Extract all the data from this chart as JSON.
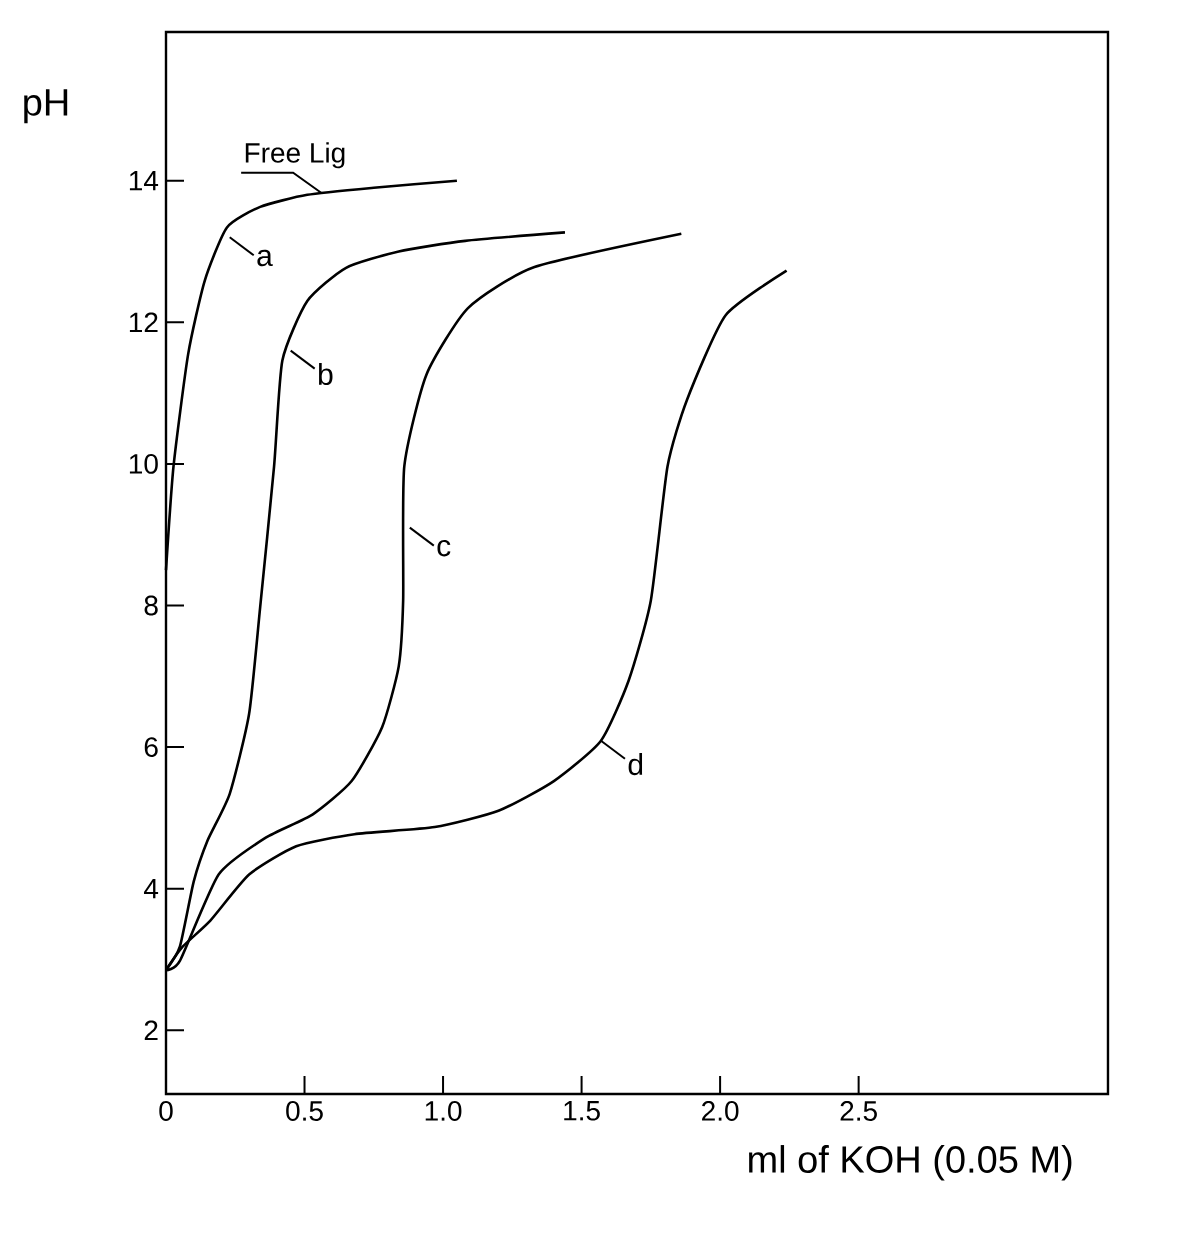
{
  "chart_data": {
    "type": "line",
    "xlabel": "ml of KOH (0.05 M)",
    "ylabel": "pH",
    "xlim": [
      0,
      3.4
    ],
    "ylim": [
      1.1,
      16.1
    ],
    "xticks": [
      0,
      {
        "value": 0.5,
        "label": "0.5"
      },
      {
        "value": 1.0,
        "label": "1.0"
      },
      {
        "value": 1.5,
        "label": "1.5"
      },
      {
        "value": 2.0,
        "label": "2.0"
      },
      {
        "value": 2.5,
        "label": "2.5"
      }
    ],
    "yticks": [
      2,
      4,
      6,
      8,
      10,
      12,
      14
    ],
    "series": [
      {
        "color": "#000000",
        "x": [
          0,
          0.027,
          0.08,
          0.14,
          0.22,
          0.34,
          0.51,
          0.75,
          1.05
        ],
        "values": [
          8.5,
          9.96,
          11.55,
          12.59,
          13.34,
          13.63,
          13.8,
          13.9,
          14.0
        ]
      },
      {
        "color": "#000000",
        "x": [
          0,
          0.05,
          0.1,
          0.15,
          0.23,
          0.3,
          0.34,
          0.39,
          0.42,
          0.51,
          0.65,
          0.84,
          1.08,
          1.44
        ],
        "values": [
          2.85,
          3.18,
          4.1,
          4.68,
          5.34,
          6.47,
          7.98,
          9.96,
          11.46,
          12.3,
          12.77,
          13.0,
          13.15,
          13.27
        ]
      },
      {
        "color": "#000000",
        "x": [
          0,
          0.05,
          0.19,
          0.36,
          0.53,
          0.67,
          0.78,
          0.84,
          0.856,
          0.86,
          0.94,
          1.09,
          1.33,
          1.86
        ],
        "values": [
          2.85,
          2.98,
          4.2,
          4.72,
          5.05,
          5.52,
          6.28,
          7.14,
          8.07,
          9.96,
          11.26,
          12.2,
          12.78,
          13.25
        ]
      },
      {
        "color": "#000000",
        "x": [
          0,
          0.06,
          0.16,
          0.3,
          0.47,
          0.68,
          0.97,
          1.2,
          1.4,
          1.57,
          1.67,
          1.75,
          1.81,
          1.88,
          2.02,
          2.24
        ],
        "values": [
          2.85,
          3.18,
          3.55,
          4.2,
          4.6,
          4.77,
          4.87,
          5.1,
          5.52,
          6.09,
          6.94,
          8.07,
          9.96,
          10.9,
          12.1,
          12.73
        ]
      }
    ],
    "annotations": [
      {
        "text": "Free Lig",
        "x": 0.56,
        "y": 13.83
      },
      {
        "text": "a",
        "x": 0.23,
        "y": 13.2
      },
      {
        "text": "b",
        "x": 0.45,
        "y": 11.6
      },
      {
        "text": "c",
        "x": 0.88,
        "y": 9.1
      },
      {
        "text": "d",
        "x": 1.57,
        "y": 6.09
      }
    ]
  }
}
